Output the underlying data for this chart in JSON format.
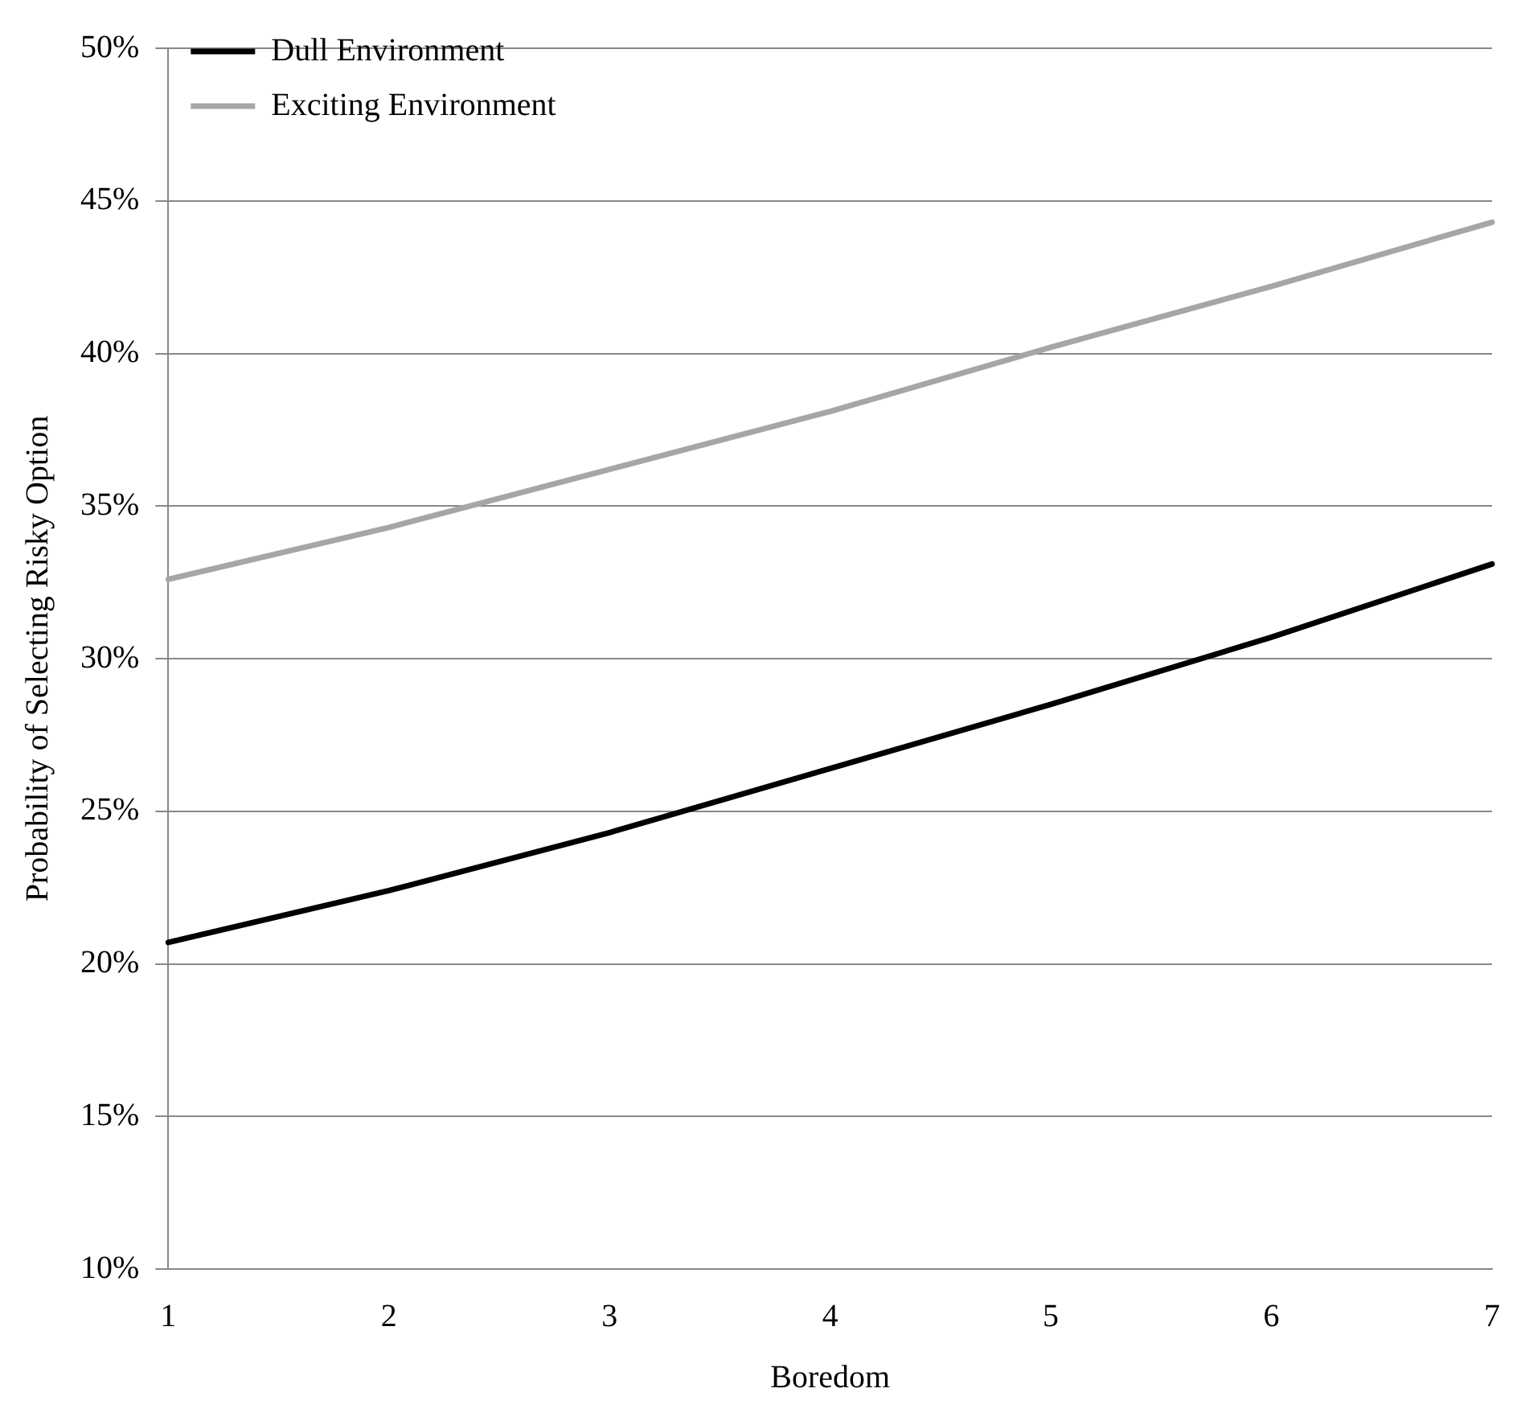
{
  "chart_data": {
    "type": "line",
    "xlabel": "Boredom",
    "ylabel": "Probability of Selecting Risky Option",
    "x": [
      1,
      2,
      3,
      4,
      5,
      6,
      7
    ],
    "series": [
      {
        "name": "Dull Environment",
        "color": "#000000",
        "values": [
          20.7,
          22.4,
          24.3,
          26.4,
          28.5,
          30.7,
          33.1
        ]
      },
      {
        "name": "Exciting Environment",
        "color": "#a6a6a6",
        "values": [
          32.6,
          34.3,
          36.2,
          38.1,
          40.2,
          42.2,
          44.3
        ]
      }
    ],
    "xlim": [
      1,
      7
    ],
    "xticks": [
      1,
      2,
      3,
      4,
      5,
      6,
      7
    ],
    "ylim": [
      10,
      50
    ],
    "yticks": [
      {
        "value": 10,
        "label": "10%"
      },
      {
        "value": 15,
        "label": "15%"
      },
      {
        "value": 20,
        "label": "20%"
      },
      {
        "value": 25,
        "label": "25%"
      },
      {
        "value": 30,
        "label": "30%"
      },
      {
        "value": 35,
        "label": "35%"
      },
      {
        "value": 40,
        "label": "40%"
      },
      {
        "value": 45,
        "label": "45%"
      },
      {
        "value": 50,
        "label": "50%"
      }
    ],
    "grid": "y",
    "legend": "top left",
    "marker": "none",
    "line_style": "solid"
  }
}
